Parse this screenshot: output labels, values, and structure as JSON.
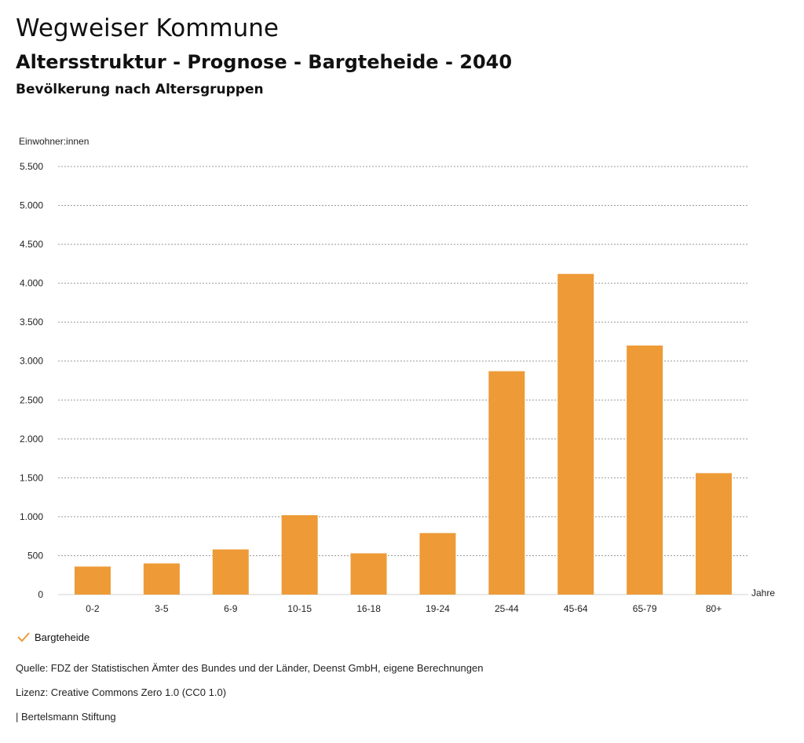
{
  "header": {
    "title": "Wegweiser Kommune",
    "subtitle": "Altersstruktur - Prognose - Bargteheide - 2040",
    "chart_title": "Bevölkerung nach Altersgruppen"
  },
  "legend": {
    "label": "Bargteheide",
    "color": "#ed9a37",
    "icon": "check-icon"
  },
  "footer": {
    "source": "Quelle: FDZ der Statistischen Ämter des Bundes und der Länder, Deenst GmbH, eigene Berechnungen",
    "license": "Lizenz: Creative Commons Zero 1.0 (CC0 1.0)",
    "brand": "| Bertelsmann Stiftung"
  },
  "chart_data": {
    "type": "bar",
    "ylabel": "Einwohner:innen",
    "xlabel": "Jahre",
    "categories": [
      "0-2",
      "3-5",
      "6-9",
      "10-15",
      "16-18",
      "19-24",
      "25-44",
      "45-64",
      "65-79",
      "80+"
    ],
    "series": [
      {
        "name": "Bargteheide",
        "values": [
          360,
          400,
          580,
          1020,
          530,
          790,
          2870,
          4120,
          3200,
          1560
        ]
      }
    ],
    "ylim": [
      0,
      5500
    ],
    "yticks": [
      0,
      500,
      1000,
      1500,
      2000,
      2500,
      3000,
      3500,
      4000,
      4500,
      5000,
      5500
    ],
    "ytick_labels": [
      "0",
      "500",
      "1.000",
      "1.500",
      "2.000",
      "2.500",
      "3.000",
      "3.500",
      "4.000",
      "4.500",
      "5.000",
      "5.500"
    ],
    "grid": true,
    "color": "#ed9a37"
  }
}
